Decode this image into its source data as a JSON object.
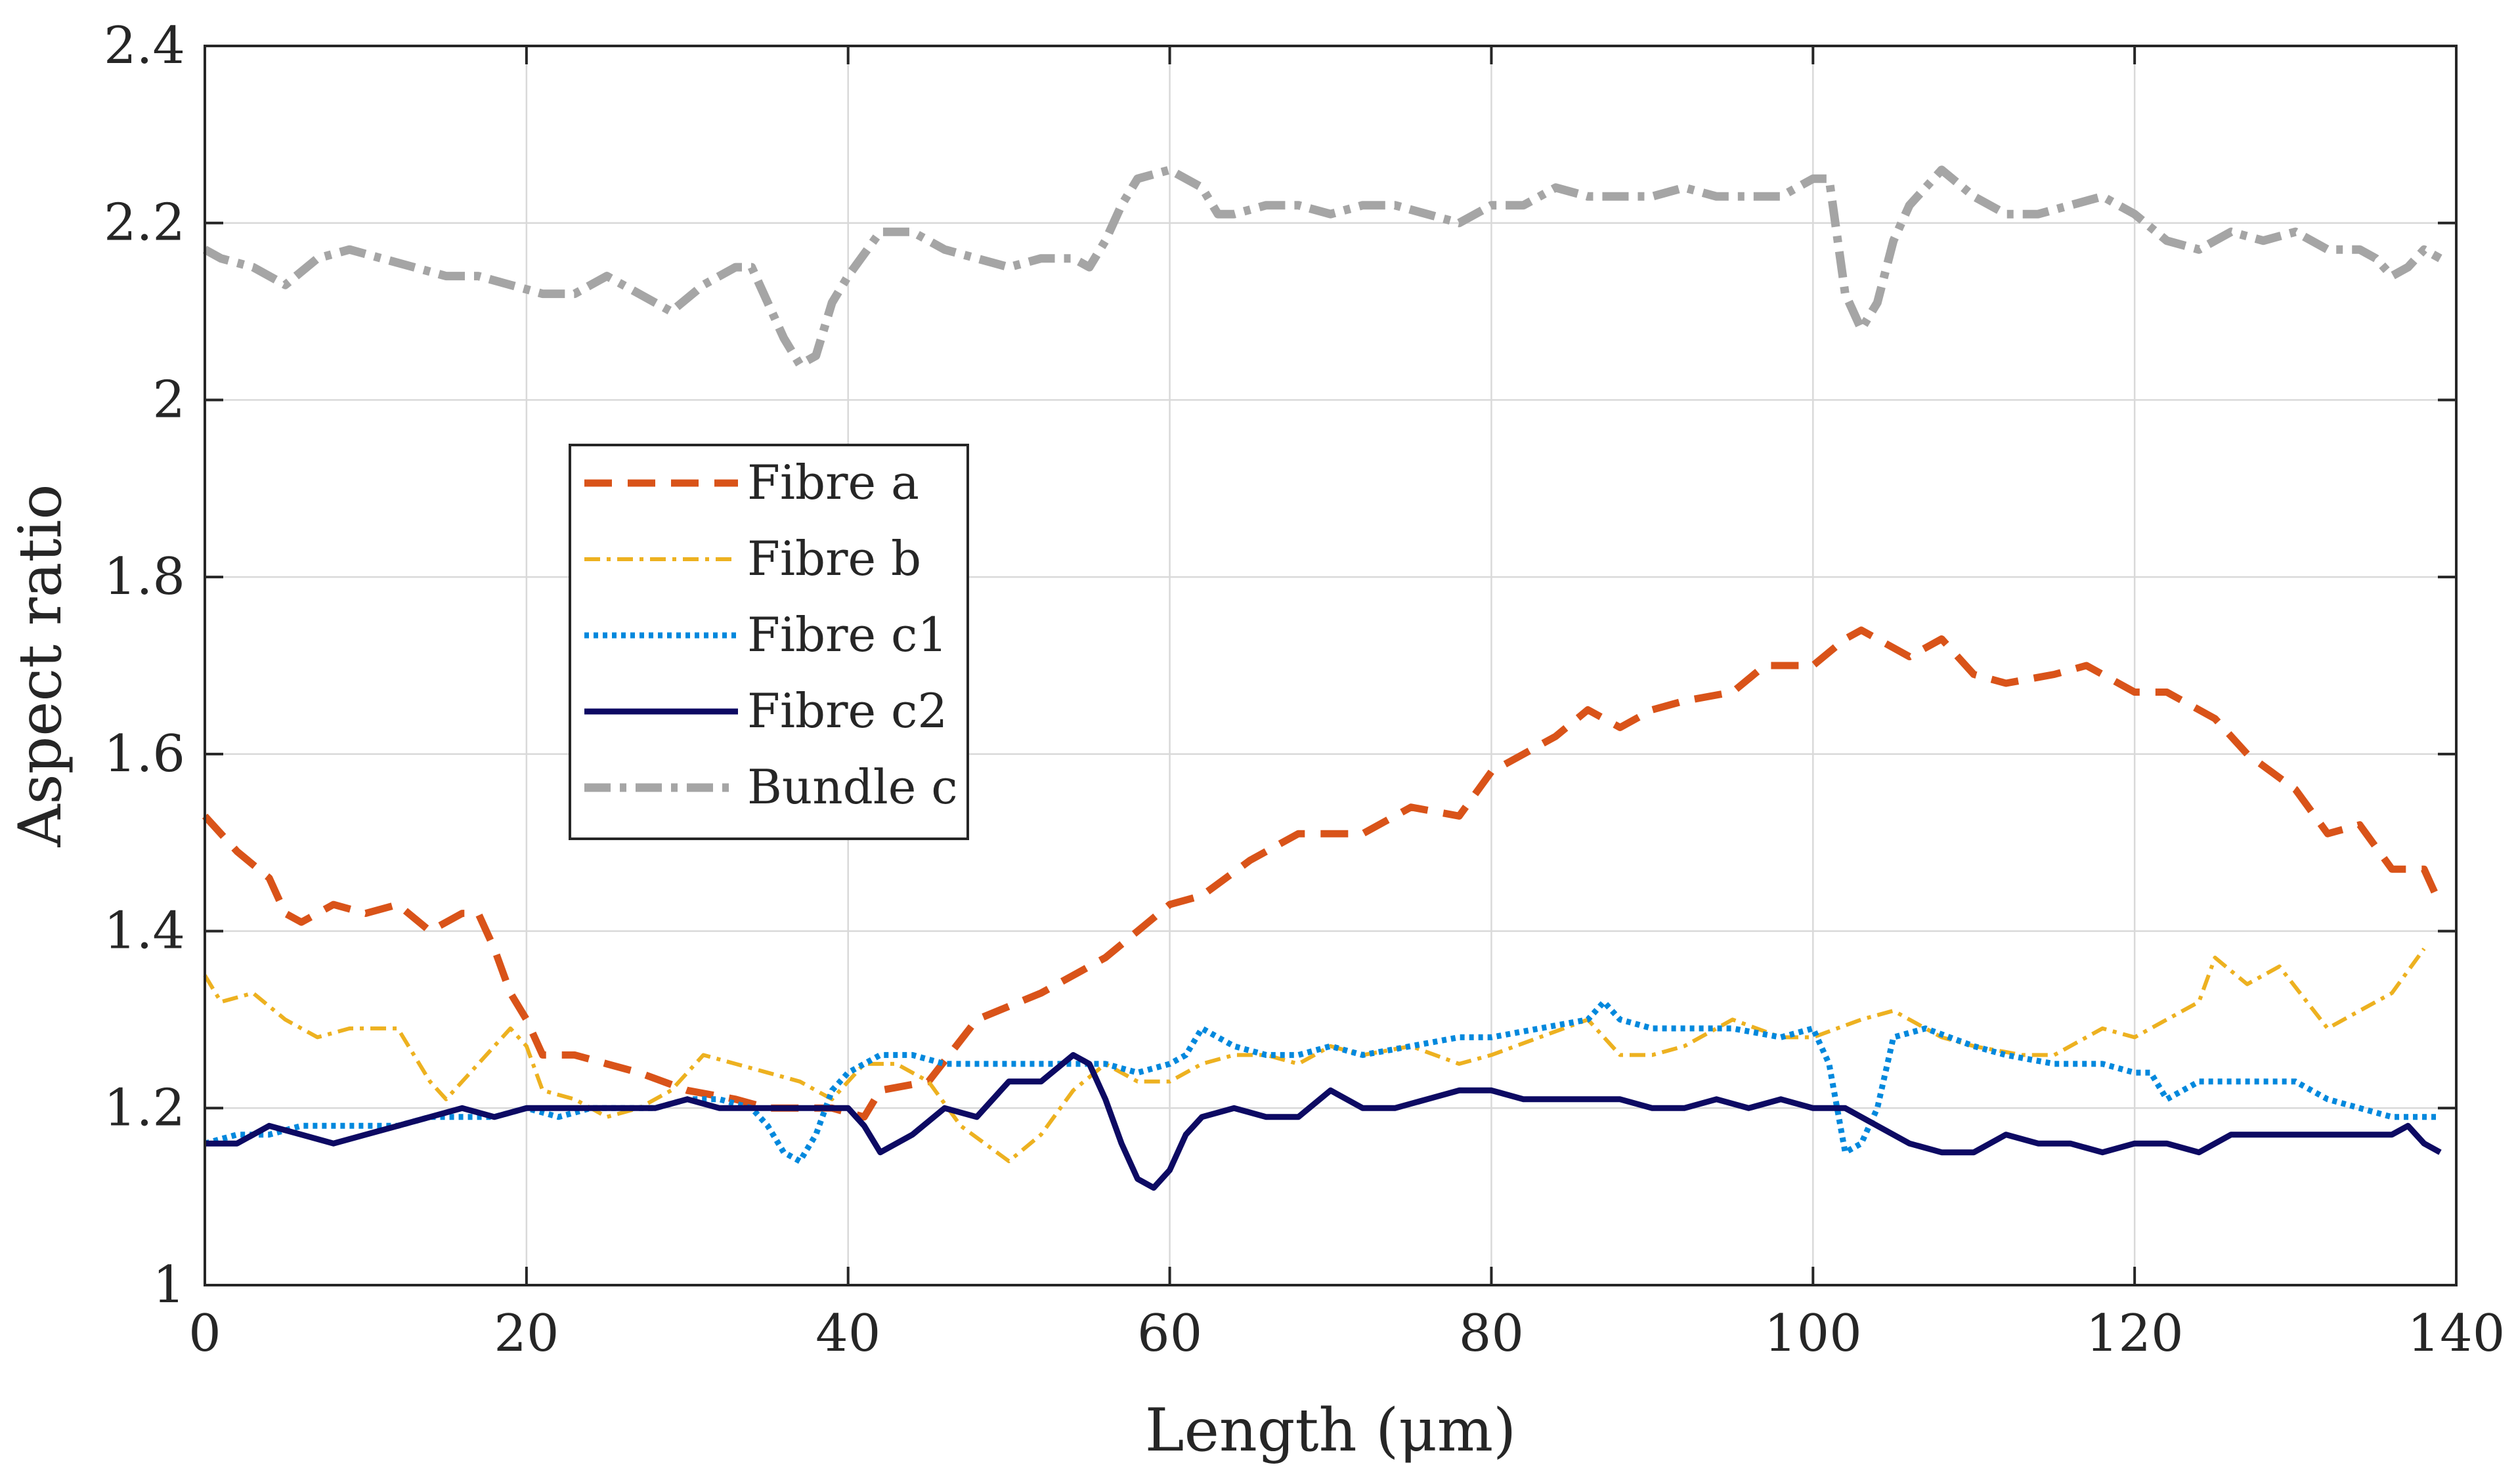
{
  "chart_data": {
    "type": "line",
    "title": "",
    "xlabel": "Length (μm)",
    "ylabel": "Aspect ratio",
    "xlim": [
      0,
      140
    ],
    "ylim": [
      1,
      2.4
    ],
    "xticks": [
      0,
      20,
      40,
      60,
      80,
      100,
      120,
      140
    ],
    "yticks": [
      1,
      1.2,
      1.4,
      1.6,
      1.8,
      2,
      2.2,
      2.4
    ],
    "xtick_labels": [
      "0",
      "20",
      "40",
      "60",
      "80",
      "100",
      "120",
      "140"
    ],
    "ytick_labels": [
      "1",
      "1.2",
      "1.4",
      "1.6",
      "1.8",
      "2",
      "2.2",
      "2.4"
    ],
    "grid": true,
    "legend_position": "center-left",
    "series": [
      {
        "name": "Fibre a",
        "color": "#d95319",
        "style": "dashed",
        "x": [
          0,
          2,
          4,
          5,
          6,
          8,
          10,
          12,
          14,
          16,
          17,
          18,
          19,
          20,
          21,
          23,
          25,
          27,
          30,
          33,
          35,
          37,
          39,
          41,
          42,
          45,
          48,
          52,
          56,
          58,
          60,
          62,
          65,
          68,
          70,
          72,
          75,
          78,
          80,
          82,
          84,
          86,
          88,
          90,
          92,
          95,
          97,
          100,
          102,
          103,
          104,
          106,
          108,
          110,
          112,
          115,
          117,
          120,
          122,
          125,
          127,
          130,
          132,
          134,
          136,
          138,
          139
        ],
        "y": [
          1.53,
          1.49,
          1.46,
          1.42,
          1.41,
          1.43,
          1.42,
          1.43,
          1.4,
          1.42,
          1.42,
          1.38,
          1.33,
          1.3,
          1.26,
          1.26,
          1.25,
          1.24,
          1.22,
          1.21,
          1.2,
          1.2,
          1.2,
          1.19,
          1.22,
          1.23,
          1.3,
          1.33,
          1.37,
          1.4,
          1.43,
          1.44,
          1.48,
          1.51,
          1.51,
          1.51,
          1.54,
          1.53,
          1.58,
          1.6,
          1.62,
          1.65,
          1.63,
          1.65,
          1.66,
          1.67,
          1.7,
          1.7,
          1.73,
          1.74,
          1.73,
          1.71,
          1.73,
          1.69,
          1.68,
          1.69,
          1.7,
          1.67,
          1.67,
          1.64,
          1.6,
          1.56,
          1.51,
          1.52,
          1.47,
          1.47,
          1.43
        ]
      },
      {
        "name": "Fibre b",
        "color": "#edb120",
        "style": "dashdot",
        "x": [
          0,
          1,
          3,
          5,
          7,
          9,
          12,
          14,
          15,
          17,
          19,
          20,
          21,
          23,
          25,
          27,
          29,
          31,
          33,
          35,
          37,
          39,
          41,
          43,
          45,
          47,
          50,
          52,
          54,
          56,
          58,
          60,
          62,
          64,
          66,
          68,
          70,
          72,
          75,
          78,
          80,
          83,
          86,
          88,
          90,
          92,
          95,
          98,
          100,
          103,
          105,
          108,
          110,
          113,
          115,
          118,
          120,
          122,
          124,
          125,
          127,
          129,
          132,
          134,
          136,
          138
        ],
        "y": [
          1.35,
          1.32,
          1.33,
          1.3,
          1.28,
          1.29,
          1.29,
          1.23,
          1.21,
          1.25,
          1.29,
          1.27,
          1.22,
          1.21,
          1.19,
          1.2,
          1.22,
          1.26,
          1.25,
          1.24,
          1.23,
          1.21,
          1.25,
          1.25,
          1.23,
          1.18,
          1.14,
          1.17,
          1.22,
          1.25,
          1.23,
          1.23,
          1.25,
          1.26,
          1.26,
          1.25,
          1.27,
          1.26,
          1.27,
          1.25,
          1.26,
          1.28,
          1.3,
          1.26,
          1.26,
          1.27,
          1.3,
          1.28,
          1.28,
          1.3,
          1.31,
          1.28,
          1.27,
          1.26,
          1.26,
          1.29,
          1.28,
          1.3,
          1.32,
          1.37,
          1.34,
          1.36,
          1.29,
          1.31,
          1.33,
          1.38
        ]
      },
      {
        "name": "Fibre c1",
        "color": "#0088dd",
        "style": "dotted",
        "x": [
          0,
          2,
          4,
          6,
          8,
          10,
          12,
          14,
          16,
          18,
          20,
          22,
          24,
          26,
          28,
          30,
          32,
          34,
          35,
          36,
          37,
          38,
          39,
          40,
          42,
          44,
          46,
          48,
          50,
          52,
          54,
          56,
          58,
          60,
          61,
          62,
          64,
          66,
          68,
          70,
          72,
          75,
          78,
          80,
          83,
          86,
          87,
          88,
          90,
          92,
          95,
          98,
          100,
          101,
          102,
          103,
          104,
          105,
          107,
          110,
          112,
          115,
          118,
          120,
          121,
          122,
          124,
          126,
          128,
          130,
          132,
          134,
          136,
          139
        ],
        "y": [
          1.16,
          1.17,
          1.17,
          1.18,
          1.18,
          1.18,
          1.18,
          1.19,
          1.19,
          1.19,
          1.2,
          1.19,
          1.2,
          1.2,
          1.2,
          1.21,
          1.21,
          1.2,
          1.18,
          1.15,
          1.14,
          1.17,
          1.22,
          1.24,
          1.26,
          1.26,
          1.25,
          1.25,
          1.25,
          1.25,
          1.25,
          1.25,
          1.24,
          1.25,
          1.26,
          1.29,
          1.27,
          1.26,
          1.26,
          1.27,
          1.26,
          1.27,
          1.28,
          1.28,
          1.29,
          1.3,
          1.32,
          1.3,
          1.29,
          1.29,
          1.29,
          1.28,
          1.29,
          1.25,
          1.15,
          1.16,
          1.2,
          1.28,
          1.29,
          1.27,
          1.26,
          1.25,
          1.25,
          1.24,
          1.24,
          1.21,
          1.23,
          1.23,
          1.23,
          1.23,
          1.21,
          1.2,
          1.19,
          1.19
        ]
      },
      {
        "name": "Fibre c2",
        "color": "#0d0a63",
        "style": "solid",
        "x": [
          0,
          2,
          4,
          6,
          8,
          10,
          12,
          14,
          16,
          18,
          20,
          22,
          24,
          26,
          28,
          30,
          32,
          34,
          36,
          38,
          40,
          41,
          42,
          44,
          46,
          48,
          50,
          52,
          54,
          55,
          56,
          57,
          58,
          59,
          60,
          61,
          62,
          64,
          66,
          68,
          70,
          72,
          74,
          76,
          78,
          80,
          82,
          84,
          86,
          88,
          90,
          92,
          94,
          96,
          98,
          100,
          102,
          104,
          106,
          108,
          110,
          112,
          114,
          116,
          118,
          120,
          122,
          124,
          126,
          128,
          130,
          132,
          134,
          136,
          137,
          138,
          139
        ],
        "y": [
          1.16,
          1.16,
          1.18,
          1.17,
          1.16,
          1.17,
          1.18,
          1.19,
          1.2,
          1.19,
          1.2,
          1.2,
          1.2,
          1.2,
          1.2,
          1.21,
          1.2,
          1.2,
          1.2,
          1.2,
          1.2,
          1.18,
          1.15,
          1.17,
          1.2,
          1.19,
          1.23,
          1.23,
          1.26,
          1.25,
          1.21,
          1.16,
          1.12,
          1.11,
          1.13,
          1.17,
          1.19,
          1.2,
          1.19,
          1.19,
          1.22,
          1.2,
          1.2,
          1.21,
          1.22,
          1.22,
          1.21,
          1.21,
          1.21,
          1.21,
          1.2,
          1.2,
          1.21,
          1.2,
          1.21,
          1.2,
          1.2,
          1.18,
          1.16,
          1.15,
          1.15,
          1.17,
          1.16,
          1.16,
          1.15,
          1.16,
          1.16,
          1.15,
          1.17,
          1.17,
          1.17,
          1.17,
          1.17,
          1.17,
          1.18,
          1.16,
          1.15
        ]
      },
      {
        "name": "Bundle c",
        "color": "#a5a5a5",
        "style": "dashdot",
        "x": [
          0,
          1,
          3,
          5,
          7,
          9,
          11,
          13,
          15,
          17,
          19,
          21,
          23,
          25,
          27,
          29,
          31,
          33,
          34,
          35,
          36,
          37,
          38,
          39,
          40,
          42,
          44,
          46,
          48,
          50,
          52,
          54,
          55,
          56,
          57,
          58,
          60,
          62,
          63,
          64,
          66,
          68,
          70,
          72,
          74,
          76,
          78,
          80,
          82,
          84,
          86,
          88,
          90,
          92,
          94,
          96,
          98,
          100,
          101,
          102,
          103,
          104,
          105,
          106,
          108,
          110,
          112,
          114,
          116,
          118,
          120,
          122,
          124,
          126,
          128,
          130,
          132,
          134,
          135,
          136,
          137,
          138,
          139
        ],
        "y": [
          2.17,
          2.16,
          2.15,
          2.13,
          2.16,
          2.17,
          2.16,
          2.15,
          2.14,
          2.14,
          2.13,
          2.12,
          2.12,
          2.14,
          2.12,
          2.1,
          2.13,
          2.15,
          2.15,
          2.11,
          2.07,
          2.04,
          2.05,
          2.11,
          2.14,
          2.19,
          2.19,
          2.17,
          2.16,
          2.15,
          2.16,
          2.16,
          2.15,
          2.18,
          2.22,
          2.25,
          2.26,
          2.24,
          2.21,
          2.21,
          2.22,
          2.22,
          2.21,
          2.22,
          2.22,
          2.21,
          2.2,
          2.22,
          2.22,
          2.24,
          2.23,
          2.23,
          2.23,
          2.24,
          2.23,
          2.23,
          2.23,
          2.25,
          2.25,
          2.12,
          2.08,
          2.11,
          2.18,
          2.22,
          2.26,
          2.23,
          2.21,
          2.21,
          2.22,
          2.23,
          2.21,
          2.18,
          2.17,
          2.19,
          2.18,
          2.19,
          2.17,
          2.17,
          2.16,
          2.14,
          2.15,
          2.17,
          2.16
        ]
      }
    ]
  }
}
